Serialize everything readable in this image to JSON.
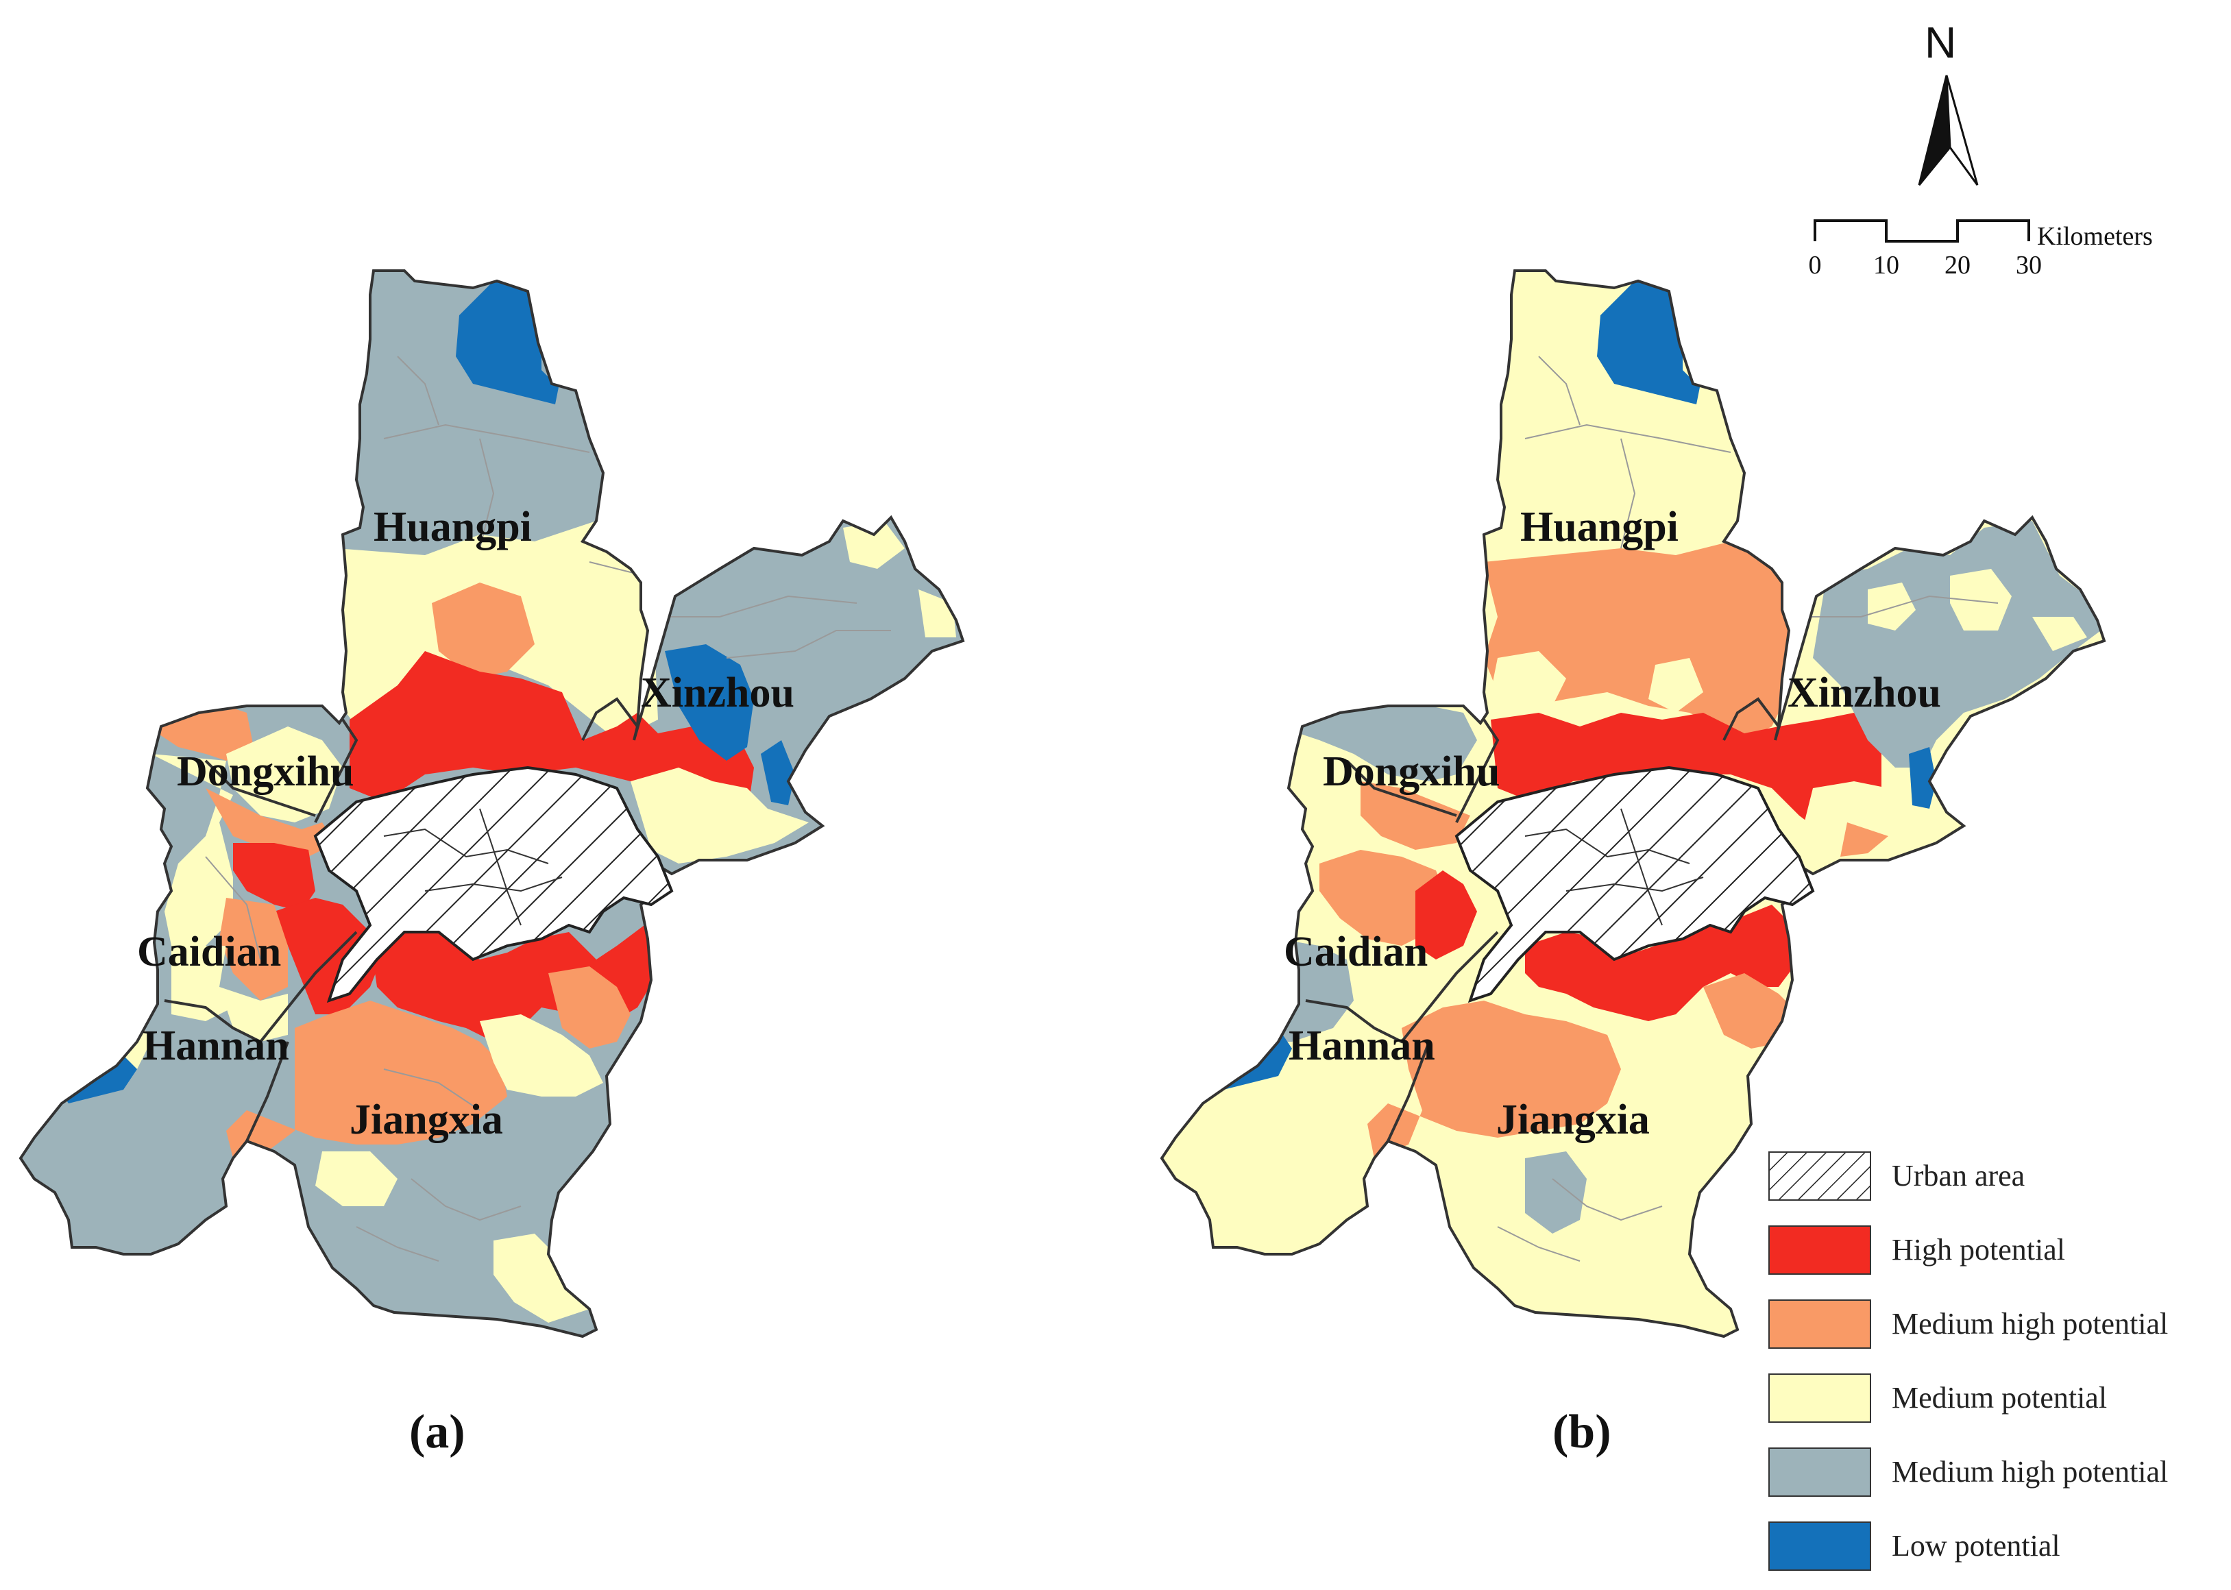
{
  "colors": {
    "urban": "hatch",
    "high": "#f22b22",
    "medium_high": "#f99a66",
    "medium": "#fefdc0",
    "medium_high_gray": "#9db3ba",
    "low": "#1471ba",
    "boundary": "#333333"
  },
  "panels": [
    {
      "label": "(a)",
      "districts": [
        "Huangpi",
        "Xinzhou",
        "Dongxihu",
        "Caidian",
        "Hannan",
        "Jiangxia"
      ]
    },
    {
      "label": "(b)",
      "districts": [
        "Huangpi",
        "Xinzhou",
        "Dongxihu",
        "Caidian",
        "Hannan",
        "Jiangxia"
      ]
    }
  ],
  "north_arrow": {
    "letter": "N",
    "icon": "north-arrow-icon"
  },
  "scale_bar": {
    "unit": "Kilometers",
    "ticks": [
      "0",
      "10",
      "20",
      "30"
    ]
  },
  "legend": [
    {
      "label": "Urban area",
      "class": "urban"
    },
    {
      "label": "High potential",
      "class": "high"
    },
    {
      "label": "Medium high potential",
      "class": "medium_high"
    },
    {
      "label": "Medium potential",
      "class": "medium"
    },
    {
      "label": "Medium high potential",
      "class": "medium_high_gray"
    },
    {
      "label": "Low potential",
      "class": "low"
    }
  ]
}
